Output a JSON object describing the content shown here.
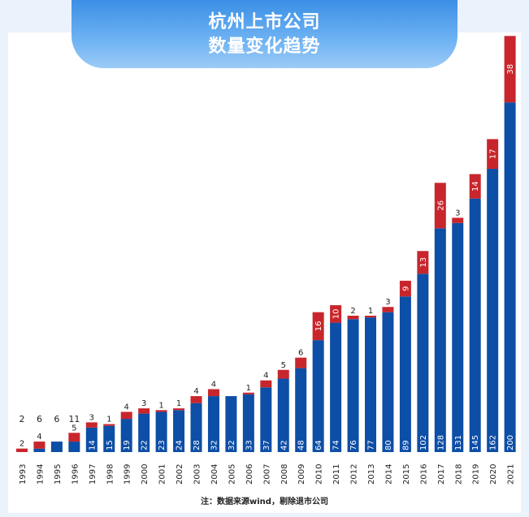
{
  "title": {
    "line1": "杭州上市公司",
    "line2": "数量变化趋势"
  },
  "note": "注：数据来源wind，剔除退市公司",
  "colors": {
    "base": "#0d4ea6",
    "added": "#c8262c",
    "banner": "#4a9aea"
  },
  "chart_data": {
    "type": "bar",
    "stacked": true,
    "categories": [
      "1993",
      "1994",
      "1995",
      "1996",
      "1997",
      "1998",
      "1999",
      "2000",
      "2001",
      "2002",
      "2003",
      "2004",
      "2005",
      "2006",
      "2007",
      "2008",
      "2009",
      "2010",
      "2011",
      "2012",
      "2013",
      "2014",
      "2015",
      "2016",
      "2017",
      "2018",
      "2019",
      "2020",
      "2021"
    ],
    "series": [
      {
        "values": [
          0,
          2,
          6,
          6,
          14,
          15,
          19,
          22,
          23,
          24,
          28,
          32,
          32,
          33,
          37,
          42,
          48,
          64,
          74,
          76,
          77,
          80,
          89,
          102,
          128,
          131,
          145,
          162,
          200
        ]
      },
      {
        "values": [
          2,
          4,
          0,
          5,
          3,
          1,
          4,
          3,
          1,
          1,
          4,
          4,
          0,
          1,
          4,
          5,
          6,
          16,
          10,
          2,
          1,
          3,
          9,
          13,
          26,
          3,
          14,
          17,
          38
        ]
      }
    ],
    "base_labels": [
      "",
      "",
      "",
      "",
      "14",
      "15",
      "19",
      "22",
      "23",
      "24",
      "28",
      "32",
      "32",
      "33",
      "37",
      "42",
      "48",
      "64",
      "74",
      "76",
      "77",
      "80",
      "89",
      "102",
      "128",
      "131",
      "145",
      "162",
      "200"
    ],
    "added_labels": [
      "2",
      "4",
      "",
      "5",
      "3",
      "1",
      "4",
      "3",
      "1",
      "1",
      "4",
      "4",
      "",
      "1",
      "4",
      "5",
      "6",
      "16",
      "10",
      "2",
      "1",
      "3",
      "9",
      "13",
      "26",
      "3",
      "14",
      "17",
      "38"
    ],
    "top_labels": [
      "2",
      "6",
      "6",
      "11",
      "",
      "",
      "",
      "",
      "",
      "",
      "",
      "",
      "",
      "",
      "",
      "",
      "",
      "",
      "",
      "",
      "",
      "",
      "",
      "",
      "",
      "",
      "",
      "",
      ""
    ],
    "ylim": [
      0,
      240
    ]
  }
}
